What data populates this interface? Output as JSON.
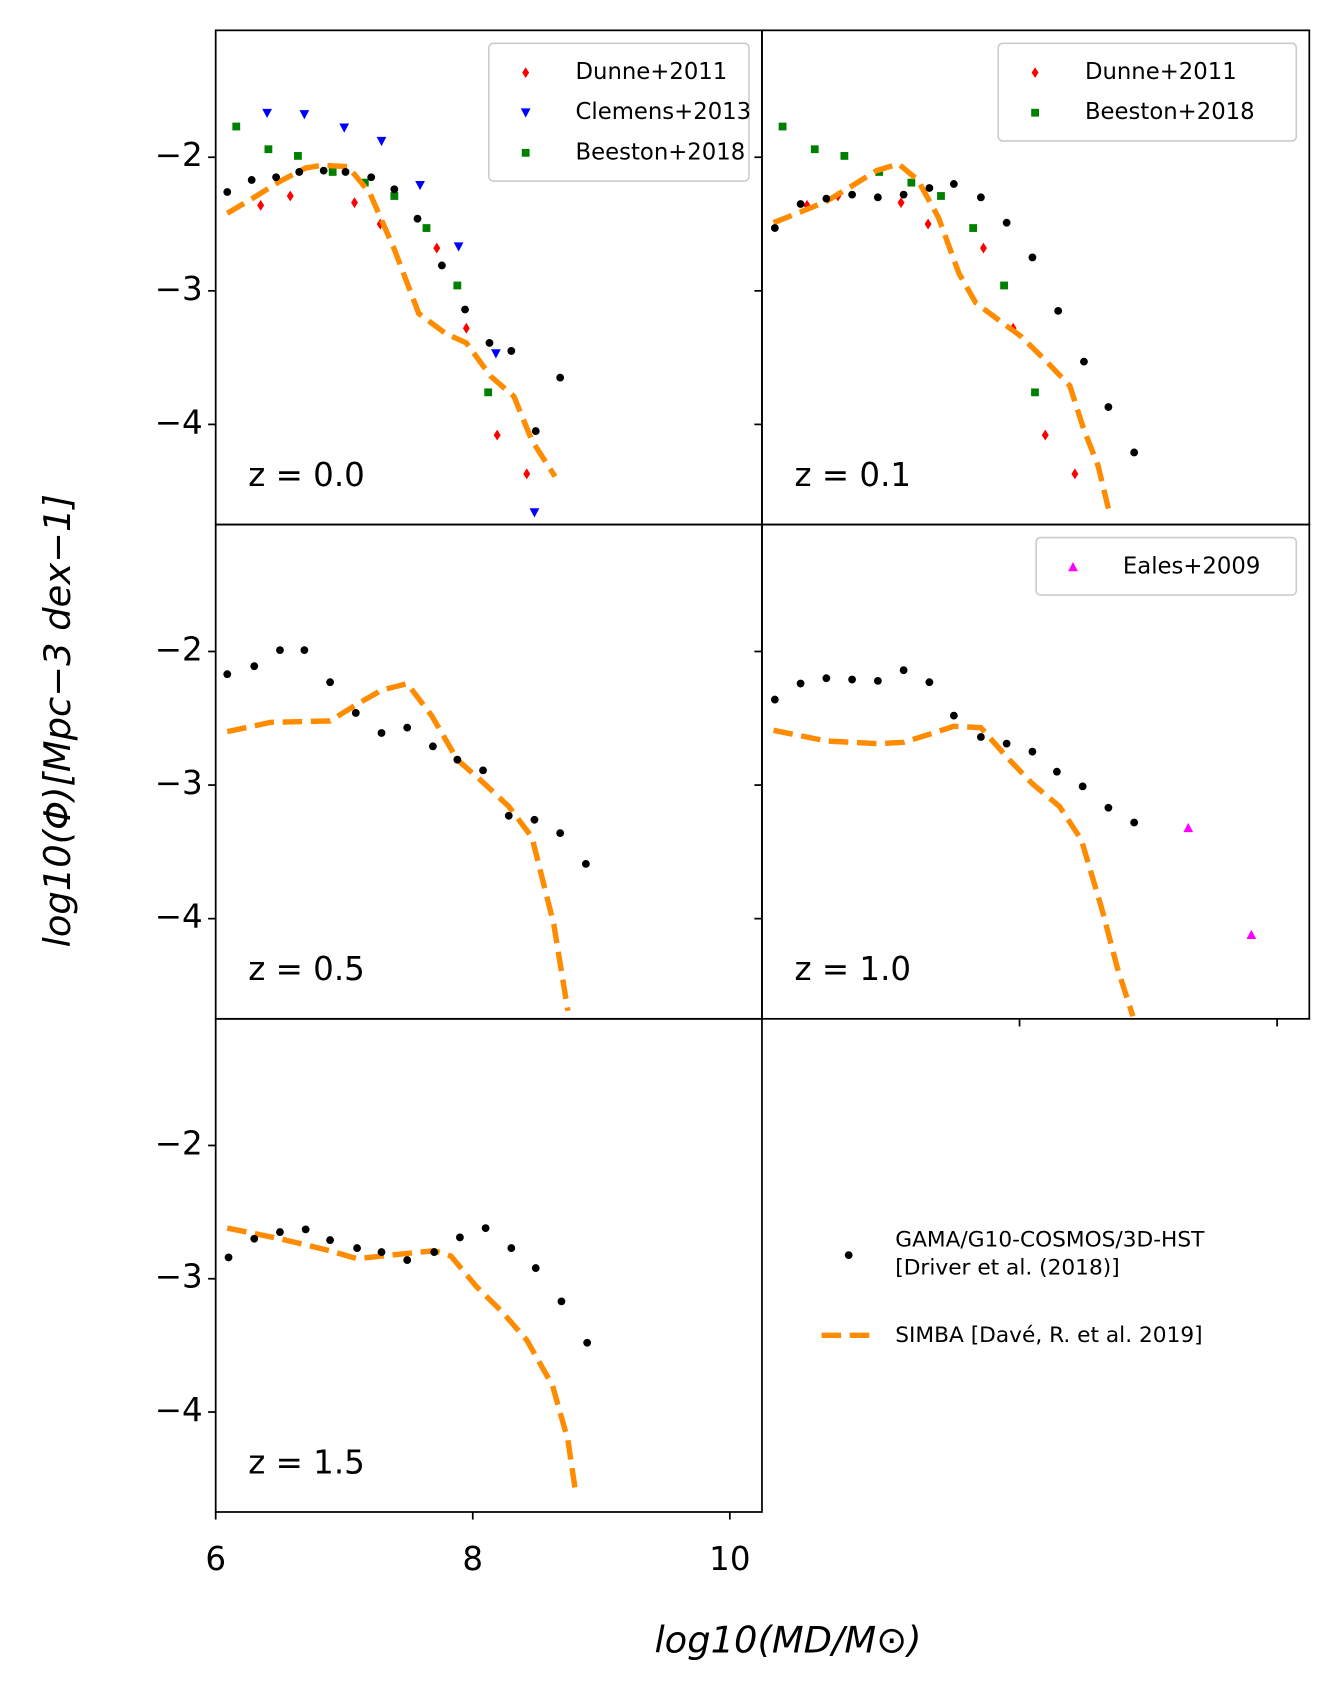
{
  "chart_data": [
    {
      "type": "scatter",
      "annotation": "z = 0.0",
      "xlim": [
        6,
        10.25
      ],
      "ylim": [
        -4.75,
        -1.05
      ],
      "yticks": [
        {
          "value": -4,
          "label": "−4"
        },
        {
          "value": -3,
          "label": "−3"
        },
        {
          "value": -2,
          "label": "−2"
        }
      ],
      "show_ytick_labels": true,
      "legend": "upper right",
      "series": [
        {
          "name": "Dunne+2011",
          "color": "#ff0000",
          "marker": "d",
          "legend": "panel",
          "x": [
            6.35,
            6.58,
            7.08,
            7.28,
            7.72,
            7.95,
            8.19,
            8.42
          ],
          "values": [
            -2.36,
            -2.29,
            -2.34,
            -2.5,
            -2.68,
            -3.28,
            -4.08,
            -4.37
          ]
        },
        {
          "name": "Clemens+2013",
          "color": "#0000ff",
          "marker": "v",
          "legend": "panel",
          "x": [
            6.4,
            6.69,
            7.0,
            7.29,
            7.59,
            7.89,
            8.18,
            8.48
          ],
          "values": [
            -1.67,
            -1.68,
            -1.78,
            -1.88,
            -2.21,
            -2.67,
            -3.47,
            -4.66
          ]
        },
        {
          "name": "Beeston+2018",
          "color": "#008000",
          "marker": "s",
          "legend": "panel",
          "x": [
            6.16,
            6.41,
            6.64,
            6.91,
            7.16,
            7.39,
            7.64,
            7.88,
            8.12
          ],
          "values": [
            -1.77,
            -1.94,
            -1.99,
            -2.11,
            -2.19,
            -2.29,
            -2.53,
            -2.96,
            -3.76
          ]
        },
        {
          "name": "SIMBA [Davé, R. et al. 2019]",
          "color": "#ff8c00",
          "marker": "dashed",
          "legend": "figure",
          "x": [
            6.09,
            6.3,
            6.5,
            6.7,
            6.83,
            7.03,
            7.2,
            7.39,
            7.58,
            7.79,
            7.95,
            8.14,
            8.32,
            8.46,
            8.64
          ],
          "values": [
            -2.42,
            -2.3,
            -2.18,
            -2.08,
            -2.06,
            -2.07,
            -2.27,
            -2.69,
            -3.17,
            -3.32,
            -3.39,
            -3.64,
            -3.79,
            -4.12,
            -4.39
          ]
        },
        {
          "name": "GAMA/G10-COSMOS/3D-HST\n[Driver et al. (2018)]",
          "color": "#000000",
          "marker": "o",
          "legend": "figure",
          "x": [
            6.09,
            6.28,
            6.47,
            6.65,
            6.84,
            7.01,
            7.21,
            7.39,
            7.57,
            7.76,
            7.94,
            8.13,
            8.3,
            8.49,
            8.68
          ],
          "values": [
            -2.26,
            -2.17,
            -2.15,
            -2.11,
            -2.1,
            -2.11,
            -2.15,
            -2.24,
            -2.46,
            -2.81,
            -3.14,
            -3.39,
            -3.45,
            -4.05,
            -3.65
          ]
        }
      ]
    },
    {
      "type": "scatter",
      "annotation": "z = 0.1",
      "xlim": [
        6,
        10.25
      ],
      "ylim": [
        -4.75,
        -1.05
      ],
      "yticks": [
        -4,
        -3,
        -2
      ],
      "show_ytick_labels": false,
      "legend": "upper right",
      "series": [
        {
          "name": "Dunne+2011",
          "color": "#ff0000",
          "marker": "d",
          "legend": "panel",
          "x": [
            6.35,
            6.59,
            7.08,
            7.29,
            7.72,
            7.95,
            8.2,
            8.43
          ],
          "values": [
            -2.36,
            -2.29,
            -2.34,
            -2.5,
            -2.68,
            -3.28,
            -4.08,
            -4.37
          ]
        },
        {
          "name": "Beeston+2018",
          "color": "#008000",
          "marker": "s",
          "legend": "panel",
          "x": [
            6.16,
            6.41,
            6.64,
            6.91,
            7.16,
            7.39,
            7.64,
            7.88,
            8.12
          ],
          "values": [
            -1.77,
            -1.94,
            -1.99,
            -2.11,
            -2.19,
            -2.29,
            -2.53,
            -2.96,
            -3.76
          ]
        },
        {
          "color": "#ff8c00",
          "marker": "dashed",
          "x": [
            6.09,
            6.3,
            6.5,
            6.69,
            6.89,
            7.06,
            7.21,
            7.37,
            7.53,
            7.66,
            7.84,
            8.01,
            8.19,
            8.39,
            8.5,
            8.61,
            8.69
          ],
          "values": [
            -2.49,
            -2.41,
            -2.33,
            -2.22,
            -2.1,
            -2.05,
            -2.17,
            -2.45,
            -2.87,
            -3.09,
            -3.22,
            -3.34,
            -3.51,
            -3.71,
            -4.04,
            -4.31,
            -4.63
          ]
        },
        {
          "color": "#000000",
          "marker": "o",
          "x": [
            6.1,
            6.3,
            6.5,
            6.7,
            6.9,
            7.1,
            7.3,
            7.49,
            7.7,
            7.9,
            8.1,
            8.3,
            8.5,
            8.69,
            8.89
          ],
          "values": [
            -2.53,
            -2.35,
            -2.31,
            -2.28,
            -2.3,
            -2.28,
            -2.23,
            -2.2,
            -2.3,
            -2.49,
            -2.75,
            -3.15,
            -3.53,
            -3.87,
            -4.21
          ]
        }
      ]
    },
    {
      "type": "scatter",
      "annotation": "z = 0.5",
      "xlim": [
        6,
        10.25
      ],
      "ylim": [
        -4.75,
        -1.05
      ],
      "yticks": [
        {
          "value": -4,
          "label": "−4"
        },
        {
          "value": -3,
          "label": "−3"
        },
        {
          "value": -2,
          "label": "−2"
        }
      ],
      "show_ytick_labels": true,
      "ylabel": "log10(Φ)[Mpc−3 dex−1]",
      "series": [
        {
          "color": "#ff8c00",
          "marker": "dashed",
          "x": [
            6.09,
            6.43,
            6.89,
            7.09,
            7.29,
            7.49,
            7.68,
            7.88,
            8.08,
            8.28,
            8.46,
            8.63,
            8.74
          ],
          "values": [
            -2.6,
            -2.53,
            -2.52,
            -2.4,
            -2.29,
            -2.24,
            -2.48,
            -2.81,
            -2.98,
            -3.16,
            -3.39,
            -4.04,
            -4.69
          ]
        },
        {
          "color": "#000000",
          "marker": "o",
          "x": [
            6.09,
            6.3,
            6.5,
            6.69,
            6.89,
            7.09,
            7.29,
            7.49,
            7.69,
            7.88,
            8.08,
            8.28,
            8.48,
            8.68,
            8.88
          ],
          "values": [
            -2.17,
            -2.11,
            -1.99,
            -1.99,
            -2.23,
            -2.46,
            -2.61,
            -2.57,
            -2.71,
            -2.81,
            -2.89,
            -3.23,
            -3.26,
            -3.36,
            -3.59
          ]
        }
      ]
    },
    {
      "type": "scatter",
      "annotation": "z = 1.0",
      "xlim": [
        6,
        10.25
      ],
      "ylim": [
        -4.75,
        -1.05
      ],
      "yticks": [
        -4,
        -3,
        -2
      ],
      "show_ytick_labels": false,
      "xticks": [
        8,
        10
      ],
      "show_xtick_labels": false,
      "legend": "upper right",
      "series": [
        {
          "name": "Eales+2009",
          "color": "#ff00ff",
          "marker": "^",
          "legend": "panel",
          "x": [
            9.31,
            9.8
          ],
          "values": [
            -3.32,
            -4.12
          ]
        },
        {
          "color": "#ff8c00",
          "marker": "dashed",
          "x": [
            6.09,
            6.5,
            6.9,
            7.1,
            7.3,
            7.49,
            7.7,
            7.91,
            8.1,
            8.31,
            8.48,
            8.64,
            8.76,
            8.88
          ],
          "values": [
            -2.59,
            -2.67,
            -2.69,
            -2.68,
            -2.62,
            -2.56,
            -2.57,
            -2.8,
            -2.99,
            -3.16,
            -3.41,
            -3.93,
            -4.37,
            -4.73
          ]
        },
        {
          "color": "#000000",
          "marker": "o",
          "x": [
            6.1,
            6.3,
            6.5,
            6.7,
            6.9,
            7.1,
            7.3,
            7.49,
            7.7,
            7.9,
            8.1,
            8.29,
            8.49,
            8.69,
            8.89
          ],
          "values": [
            -2.36,
            -2.24,
            -2.2,
            -2.21,
            -2.22,
            -2.14,
            -2.23,
            -2.48,
            -2.64,
            -2.69,
            -2.75,
            -2.9,
            -3.01,
            -3.17,
            -3.28
          ]
        }
      ]
    },
    {
      "type": "scatter",
      "annotation": "z = 1.5",
      "xlim": [
        6,
        10.25
      ],
      "ylim": [
        -4.75,
        -1.05
      ],
      "yticks": [
        {
          "value": -4,
          "label": "−4"
        },
        {
          "value": -3,
          "label": "−3"
        },
        {
          "value": -2,
          "label": "−2"
        }
      ],
      "show_ytick_labels": true,
      "xticks": [
        6,
        8,
        10
      ],
      "show_xtick_labels": true,
      "xlabel": "log10(MD/M⊙)",
      "series": [
        {
          "color": "#ff8c00",
          "marker": "dashed",
          "x": [
            6.09,
            6.5,
            6.89,
            7.1,
            7.29,
            7.49,
            7.7,
            7.83,
            8.03,
            8.23,
            8.42,
            8.62,
            8.74,
            8.8
          ],
          "values": [
            -2.62,
            -2.7,
            -2.79,
            -2.85,
            -2.83,
            -2.81,
            -2.79,
            -2.83,
            -3.06,
            -3.25,
            -3.46,
            -3.8,
            -4.21,
            -4.6
          ]
        },
        {
          "color": "#000000",
          "marker": "o",
          "x": [
            6.1,
            6.3,
            6.5,
            6.7,
            6.89,
            7.1,
            7.29,
            7.49,
            7.7,
            7.9,
            8.1,
            8.3,
            8.49,
            8.69,
            8.89
          ],
          "values": [
            -2.84,
            -2.7,
            -2.65,
            -2.63,
            -2.71,
            -2.77,
            -2.8,
            -2.86,
            -2.8,
            -2.69,
            -2.62,
            -2.77,
            -2.92,
            -3.17,
            -3.48
          ]
        }
      ]
    }
  ]
}
